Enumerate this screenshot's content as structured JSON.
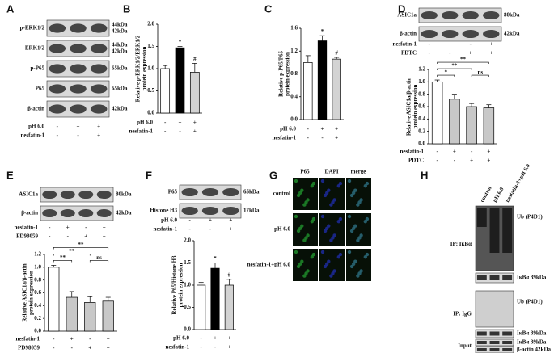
{
  "panels": [
    "A",
    "B",
    "C",
    "D",
    "E",
    "F",
    "G",
    "H"
  ],
  "blot_a": {
    "rows": [
      {
        "label": "p-ERK1/2",
        "kda": [
          "44kDa",
          "42kDa"
        ]
      },
      {
        "label": "ERK1/2",
        "kda": [
          "44kDa",
          "42kDa"
        ]
      },
      {
        "label": "p-P65",
        "kda": [
          "65kDa"
        ]
      },
      {
        "label": "P65",
        "kda": [
          "65kDa"
        ]
      },
      {
        "label": "β-actin",
        "kda": [
          "42kDa"
        ]
      }
    ],
    "conditions": [
      {
        "name": "pH 6.0",
        "signs": [
          "-",
          "+",
          "+"
        ]
      },
      {
        "name": "nesfatin-1",
        "signs": [
          "-",
          "-",
          "+"
        ]
      }
    ]
  },
  "blot_d": {
    "rows": [
      {
        "label": "ASIC1a",
        "kda": [
          "80kDa"
        ]
      },
      {
        "label": "β-actin",
        "kda": [
          "42kDa"
        ]
      }
    ],
    "conditions": [
      {
        "name": "nesfatin-1",
        "signs": [
          "-",
          "+",
          "-",
          "+"
        ]
      },
      {
        "name": "PDTC",
        "signs": [
          "-",
          "-",
          "+",
          "+"
        ]
      }
    ]
  },
  "blot_e": {
    "rows": [
      {
        "label": "ASIC1a",
        "kda": [
          "80kDa"
        ]
      },
      {
        "label": "β-actin",
        "kda": [
          "42kDa"
        ]
      }
    ],
    "conditions": [
      {
        "name": "nesfatin-1",
        "signs": [
          "-",
          "+",
          "-",
          "+"
        ]
      },
      {
        "name": "PD98059",
        "signs": [
          "-",
          "-",
          "+",
          "+"
        ]
      }
    ]
  },
  "blot_f": {
    "rows": [
      {
        "label": "P65",
        "kda": [
          "65kDa"
        ]
      },
      {
        "label": "Histone H3",
        "kda": [
          "17kDa"
        ]
      }
    ],
    "conditions": [
      {
        "name": "pH 6.0",
        "signs": [
          "-",
          "+",
          "+"
        ]
      },
      {
        "name": "nesfatin-1",
        "signs": [
          "-",
          "-",
          "+"
        ]
      }
    ]
  },
  "micrographs": {
    "columns": [
      "P65",
      "DAPI",
      "merge"
    ],
    "rows": [
      "control",
      "pH 6.0",
      "nesfatin-1+pH 6.0"
    ]
  },
  "blot_h": {
    "columns": [
      "control",
      "pH 6.0",
      "nesfatin-1+pH 6.0"
    ],
    "sections": [
      {
        "label": "IP: IκBα",
        "rows": [
          "Ub (P4D1)",
          "IκBα 39kDa"
        ]
      },
      {
        "label": "IP: IgG",
        "rows": [
          "Ub (P4D1)",
          "IκBα 39kDa"
        ]
      },
      {
        "label": "Input",
        "rows": [
          "IκBα 39kDa",
          "β-actin 42kDa"
        ]
      }
    ]
  },
  "chart_data": [
    {
      "type": "bar",
      "y_label": [
        "Relative p-ERK1/2/ERK1/2",
        "protein expression"
      ],
      "values": [
        1.0,
        1.47,
        0.92
      ],
      "errors": [
        0.07,
        0.03,
        0.2
      ],
      "colors": [
        "#ffffff",
        "#000000",
        "#d3d3d3"
      ],
      "ylim": [
        0,
        2
      ],
      "yticks": [
        {
          "value": 0,
          "label": "0.0"
        },
        0.5,
        {
          "value": 1,
          "label": "1.0"
        },
        1.5,
        {
          "value": 2,
          "label": "2.0"
        }
      ],
      "conditions": [
        {
          "name": "pH 6.0",
          "signs": [
            "-",
            "+",
            "+"
          ]
        },
        {
          "name": "nesfatin-1",
          "signs": [
            "-",
            "-",
            "+"
          ]
        }
      ],
      "annotations": [
        {
          "bar": 1,
          "text": "*"
        },
        {
          "bar": 2,
          "text": "#"
        }
      ]
    },
    {
      "type": "bar",
      "y_label": [
        "Relative p-P65/P65",
        "protein expression"
      ],
      "values": [
        1.0,
        1.38,
        1.06
      ],
      "errors": [
        0.12,
        0.09,
        0.03
      ],
      "colors": [
        "#ffffff",
        "#000000",
        "#d3d3d3"
      ],
      "ylim": [
        0,
        1.6
      ],
      "yticks": [
        {
          "value": 0,
          "label": "0.0"
        },
        0.4,
        0.8,
        1.2,
        1.6
      ],
      "conditions": [
        {
          "name": "pH 6.0",
          "signs": [
            "-",
            "+",
            "+"
          ]
        },
        {
          "name": "nesfatin-1",
          "signs": [
            "-",
            "-",
            "+"
          ]
        }
      ],
      "annotations": [
        {
          "bar": 1,
          "text": "*"
        },
        {
          "bar": 2,
          "text": "#"
        }
      ]
    },
    {
      "type": "bar",
      "y_label": [
        "Relative ASIC1a/β-actin",
        "protein expression"
      ],
      "values": [
        1.0,
        0.72,
        0.6,
        0.58
      ],
      "errors": [
        0.03,
        0.08,
        0.05,
        0.05
      ],
      "colors": [
        "#ffffff",
        "#c8c8c8",
        "#c8c8c8",
        "#c8c8c8"
      ],
      "ylim": [
        0,
        1.2
      ],
      "yticks": [
        {
          "value": 0,
          "label": "0.0"
        },
        0.2,
        0.4,
        0.6,
        0.8,
        {
          "value": 1,
          "label": "1.0"
        },
        1.2
      ],
      "conditions": [
        {
          "name": "nesfatin-1",
          "signs": [
            "-",
            "+",
            "-",
            "+"
          ]
        },
        {
          "name": "PDTC",
          "signs": [
            "-",
            "-",
            "+",
            "+"
          ]
        }
      ],
      "brackets": [
        {
          "from": 0,
          "to": 1,
          "text": "*"
        },
        {
          "from": 0,
          "to": 2,
          "text": "**"
        },
        {
          "from": 0,
          "to": 3,
          "text": "**"
        },
        {
          "from": 2,
          "to": 3,
          "text": "ns"
        }
      ]
    },
    {
      "type": "bar",
      "y_label": [
        "Relative ASIC1a/β-actin",
        "protein expression"
      ],
      "values": [
        1.0,
        0.53,
        0.45,
        0.47
      ],
      "errors": [
        0.03,
        0.09,
        0.09,
        0.06
      ],
      "colors": [
        "#ffffff",
        "#c8c8c8",
        "#c8c8c8",
        "#c8c8c8"
      ],
      "ylim": [
        0,
        1.2
      ],
      "yticks": [
        {
          "value": 0,
          "label": "0.0"
        },
        0.2,
        0.4,
        0.6,
        0.8,
        {
          "value": 1,
          "label": "1.0"
        },
        1.2
      ],
      "conditions": [
        {
          "name": "nesfatin-1",
          "signs": [
            "-",
            "+",
            "-",
            "+"
          ]
        },
        {
          "name": "PD98059",
          "signs": [
            "-",
            "-",
            "+",
            "+"
          ]
        }
      ],
      "brackets": [
        {
          "from": 0,
          "to": 1,
          "text": "**"
        },
        {
          "from": 0,
          "to": 2,
          "text": "**"
        },
        {
          "from": 0,
          "to": 3,
          "text": "**"
        },
        {
          "from": 2,
          "to": 3,
          "text": "ns"
        }
      ]
    },
    {
      "type": "bar",
      "y_label": [
        "Relative P65/Histone H3",
        "protein expression"
      ],
      "values": [
        1.0,
        1.38,
        1.0
      ],
      "errors": [
        0.06,
        0.12,
        0.13
      ],
      "colors": [
        "#ffffff",
        "#000000",
        "#d3d3d3"
      ],
      "ylim": [
        0,
        2
      ],
      "yticks": [
        {
          "value": 0,
          "label": "0.0"
        },
        0.5,
        {
          "value": 1,
          "label": "1.0"
        },
        1.5,
        {
          "value": 2,
          "label": "2.0"
        }
      ],
      "conditions": [
        {
          "name": "pH 6.0",
          "signs": [
            "-",
            "+",
            "+"
          ]
        },
        {
          "name": "nesfatin-1",
          "signs": [
            "-",
            "-",
            "+"
          ]
        }
      ],
      "annotations": [
        {
          "bar": 1,
          "text": "*"
        },
        {
          "bar": 2,
          "text": "#"
        }
      ]
    }
  ]
}
